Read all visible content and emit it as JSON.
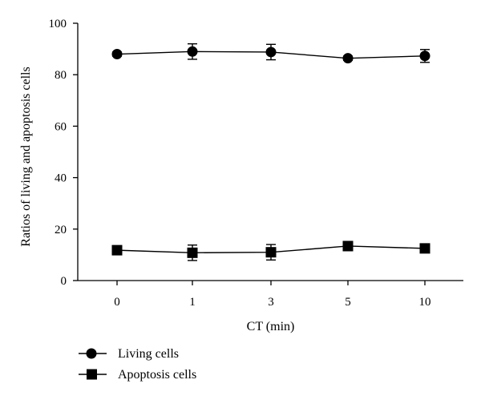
{
  "chart_data": {
    "type": "line",
    "xlabel": "CT (min)",
    "ylabel": "Ratios of living and apoptosis cells",
    "categories": [
      "0",
      "1",
      "3",
      "5",
      "10"
    ],
    "ylim": [
      0,
      100
    ],
    "yticks": [
      0,
      20,
      40,
      60,
      80,
      100
    ],
    "grid": false,
    "legend_position": "bottom-left",
    "series": [
      {
        "name": "Living cells",
        "marker": "circle",
        "values": [
          88.0,
          89.0,
          88.8,
          86.4,
          87.3
        ],
        "errors": [
          0.8,
          3.0,
          3.0,
          0.8,
          2.5
        ]
      },
      {
        "name": "Apoptosis cells",
        "marker": "square",
        "values": [
          11.8,
          10.8,
          11.0,
          13.4,
          12.5
        ],
        "errors": [
          0.8,
          3.0,
          3.0,
          0.8,
          1.5
        ]
      }
    ],
    "colors": {
      "line": "#000000",
      "marker": "#000000"
    }
  }
}
